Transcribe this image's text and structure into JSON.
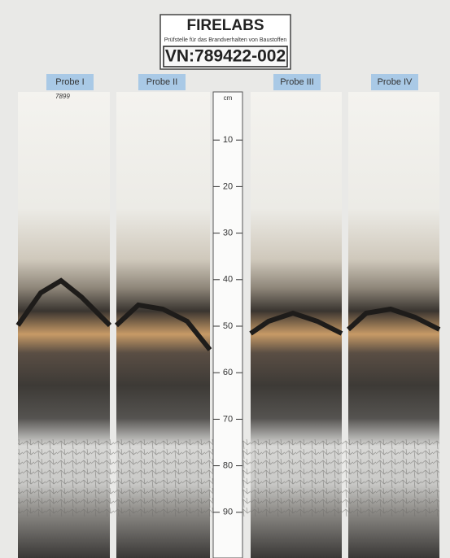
{
  "header": {
    "title": "FIRELABS",
    "subtitle": "Prüfstelle für das Brandverhalten von Baustoffen",
    "number": "VN:789422-002"
  },
  "samples": [
    "Probe I",
    "Probe II",
    "Probe III",
    "Probe IV"
  ],
  "annotation": "7899",
  "ruler": {
    "unit": "cm",
    "marks": [
      10,
      20,
      30,
      40,
      50,
      60,
      70,
      80,
      90
    ]
  }
}
